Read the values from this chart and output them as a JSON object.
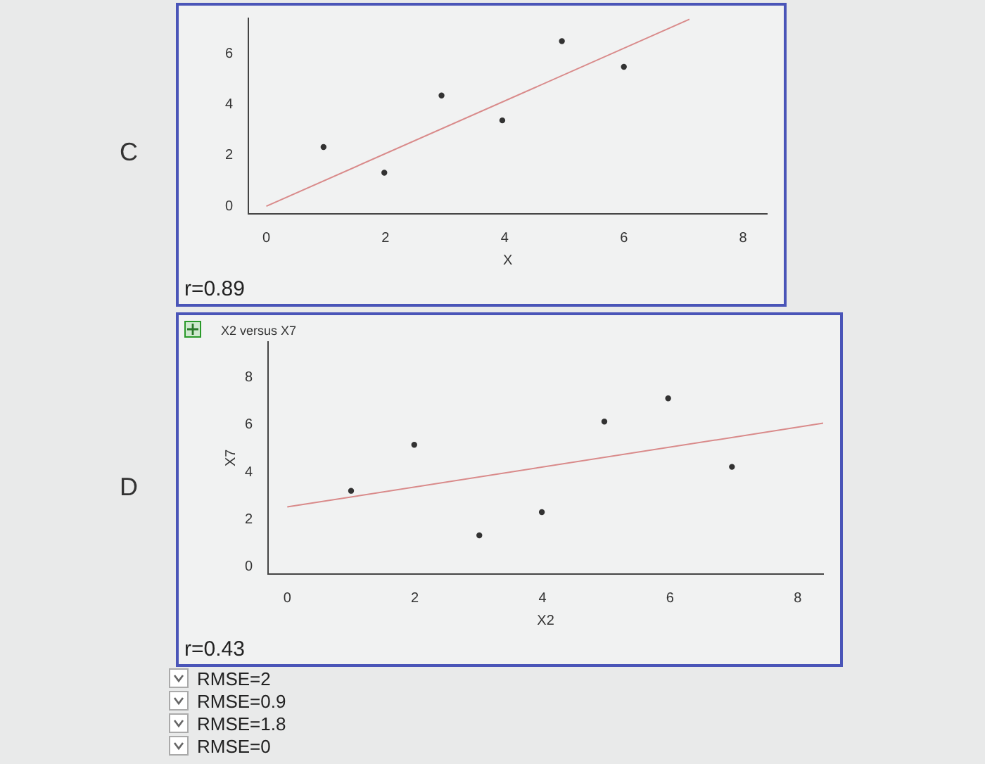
{
  "chart_data": [
    {
      "type": "scatter",
      "xlabel": "X",
      "annotations": [
        "C",
        "r=0.89"
      ],
      "xlim": [
        -0.3,
        8.4
      ],
      "ylim": [
        -0.3,
        7.4
      ],
      "xticks": [
        0,
        2,
        4,
        6,
        8
      ],
      "yticks": [
        0,
        2,
        4,
        6
      ],
      "grid": false,
      "legend": false,
      "series": [
        {
          "type": "scatter",
          "marker": "circle",
          "color": "#333333",
          "x": [
            0.96,
            1.98,
            2.94,
            3.96,
            4.96,
            6.0
          ],
          "values": [
            2.33,
            1.32,
            4.36,
            3.38,
            6.5,
            5.49
          ]
        },
        {
          "type": "line",
          "marker": "none",
          "color": "#d98a8a",
          "x": [
            0,
            7.1
          ],
          "values": [
            0,
            7.36
          ]
        }
      ]
    },
    {
      "type": "scatter",
      "title": "X2 versus X7",
      "xlabel": "X2",
      "ylabel": "X7",
      "annotations": [
        "D",
        "r=0.43"
      ],
      "xlim": [
        -0.3,
        8.4
      ],
      "ylim": [
        -0.3,
        9.5
      ],
      "xticks": [
        0,
        2,
        4,
        6,
        8
      ],
      "yticks": [
        0,
        2,
        4,
        6,
        8
      ],
      "grid": false,
      "legend": false,
      "series": [
        {
          "type": "scatter",
          "marker": "circle",
          "color": "#333333",
          "x": [
            1.0,
            1.99,
            3.01,
            3.99,
            4.97,
            5.97,
            6.97
          ],
          "values": [
            3.21,
            5.15,
            1.33,
            2.31,
            6.13,
            7.11,
            4.22
          ]
        },
        {
          "type": "line",
          "marker": "none",
          "color": "#d98a8a",
          "x": [
            0,
            8.4
          ],
          "values": [
            2.53,
            6.06
          ]
        }
      ]
    },
    {
      "type": "other",
      "annotations": [
        "RMSE=2",
        "RMSE=0.9",
        "RMSE=1.8",
        "RMSE=0"
      ]
    }
  ]
}
